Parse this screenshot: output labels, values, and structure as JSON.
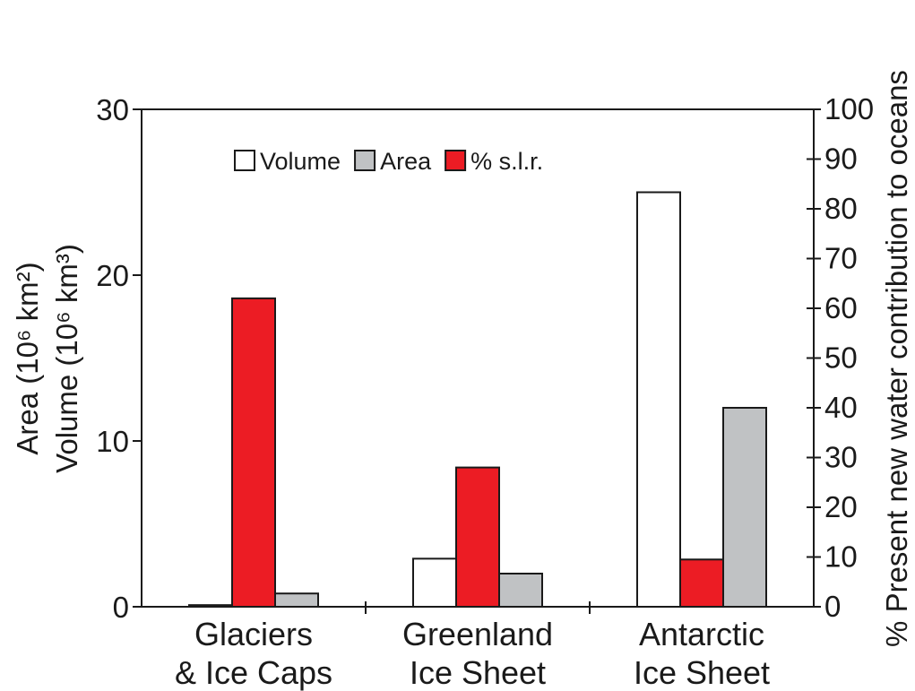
{
  "chart_data": {
    "type": "bar",
    "categories": [
      [
        "Glaciers",
        "& Ice Caps"
      ],
      [
        "Greenland",
        "Ice Sheet"
      ],
      [
        "Antarctic",
        "Ice Sheet"
      ]
    ],
    "series": [
      {
        "name": "Volume",
        "axis": "left",
        "color": "#ffffff",
        "values": [
          0.1,
          2.9,
          25.0
        ]
      },
      {
        "name": "% s.l.r.",
        "axis": "right",
        "color": "#ec1c24",
        "values": [
          62,
          28,
          9.5
        ]
      },
      {
        "name": "Area",
        "axis": "left",
        "color": "#c0c2c4",
        "values": [
          0.8,
          2.0,
          12.0
        ]
      }
    ],
    "legend_order": [
      "Volume",
      "Area",
      "% s.l.r."
    ],
    "legend_placement": "top-left",
    "ylabel_left": [
      "Area (10⁶ km²)",
      "Volume (10⁶ km³)"
    ],
    "ylabel_right": "% Present new water contribution to oceans",
    "ylim_left": [
      0,
      30
    ],
    "ylim_right": [
      0,
      100
    ],
    "yticks_left": [
      "0",
      "10",
      "20",
      "30"
    ],
    "yticks_right": [
      "0",
      "10",
      "20",
      "30",
      "40",
      "50",
      "60",
      "70",
      "80",
      "90",
      "100"
    ],
    "grid": false
  }
}
